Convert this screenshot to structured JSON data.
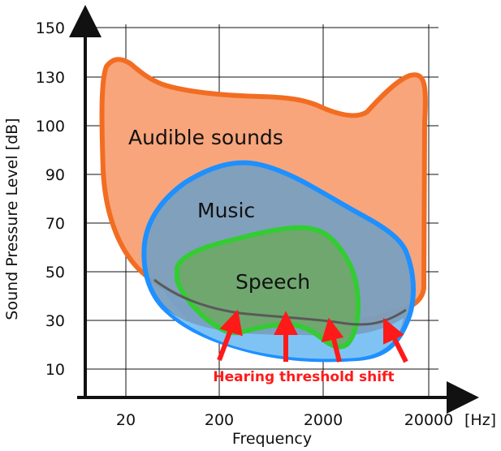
{
  "axes": {
    "y_title": "Sound Pressure Level [dB]",
    "x_title": "Frequency",
    "x_unit": "[Hz]",
    "y_ticks": [
      "150",
      "130",
      "100",
      "90",
      "70",
      "50",
      "30",
      "10"
    ],
    "x_ticks": [
      "20",
      "200",
      "2000",
      "20000"
    ]
  },
  "regions": {
    "audible": {
      "label": "Audible sounds",
      "fill": "#f8a57b",
      "stroke": "#f26d22"
    },
    "music": {
      "label": "Music",
      "fill": "#7a9fc0",
      "stroke": "#1e90ff"
    },
    "speech": {
      "label": "Speech",
      "fill": "#6fa86a",
      "stroke": "#33cc33"
    }
  },
  "callout": {
    "label": "Hearing threshold shift",
    "color": "#ff1a1a"
  },
  "colors": {
    "axis": "#111111",
    "grid": "#111111",
    "shift_fill": "#7fc3f5"
  }
}
